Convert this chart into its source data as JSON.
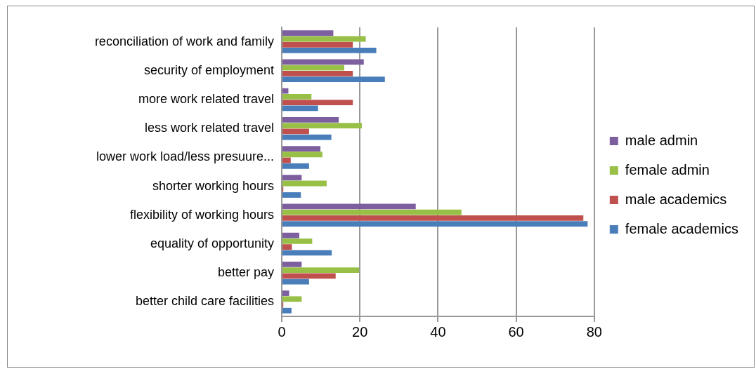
{
  "chart_data": {
    "type": "bar",
    "orientation": "horizontal",
    "categories": [
      "reconciliation of work and family",
      "security of employment",
      "more work related travel",
      "less work related travel",
      "lower work load/less presuure...",
      "shorter working hours",
      "flexibility of working hours",
      "equality of opportunity",
      "better pay",
      "better child care facilities"
    ],
    "series": [
      {
        "name": "male admin",
        "color": "#7d5fa0",
        "values": [
          13.2,
          21,
          1.7,
          14.6,
          9.9,
          5.1,
          34.3,
          4.5,
          5.1,
          1.9
        ]
      },
      {
        "name": "female admin",
        "color": "#98c046",
        "values": [
          21.5,
          16,
          7.6,
          20.5,
          10.4,
          11.5,
          46,
          7.8,
          19.8,
          5.1
        ]
      },
      {
        "name": "male academics",
        "color": "#c0504d",
        "values": [
          18.2,
          18.2,
          18.2,
          7,
          2.3,
          0.4,
          77.2,
          2.6,
          13.8,
          0.4
        ]
      },
      {
        "name": "female academics",
        "color": "#4a7ebb",
        "values": [
          24.2,
          26.4,
          9.3,
          12.7,
          7,
          4.9,
          78.3,
          12.8,
          7,
          2.5
        ]
      }
    ],
    "xlim": [
      0,
      80
    ],
    "xticks": [
      0,
      20,
      40,
      60,
      80
    ],
    "grid": "x",
    "legend": "right"
  }
}
